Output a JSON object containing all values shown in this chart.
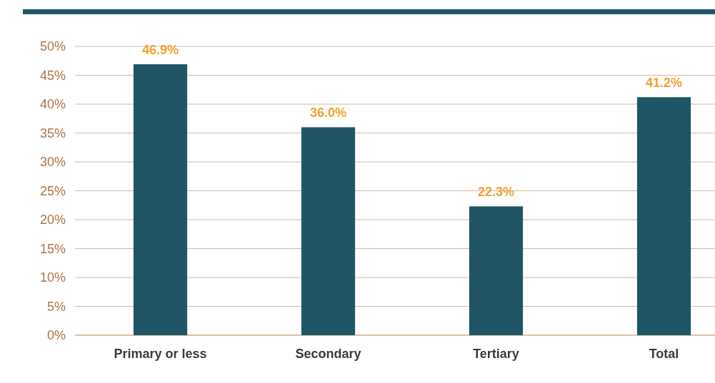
{
  "chart_data": {
    "type": "bar",
    "categories": [
      "Primary or less",
      "Secondary",
      "Tertiary",
      "Total"
    ],
    "values": [
      46.9,
      36.0,
      22.3,
      41.2
    ],
    "color": "#1f5566",
    "value_labels": [
      "46.9%",
      "36.0%",
      "22.3%",
      "41.2%"
    ],
    "ylim": [
      0,
      50
    ],
    "yticks": [
      {
        "value": 0,
        "label": "0%"
      },
      {
        "value": 5,
        "label": "5%"
      },
      {
        "value": 10,
        "label": "10%"
      },
      {
        "value": 15,
        "label": "15%"
      },
      {
        "value": 20,
        "label": "20%"
      },
      {
        "value": 25,
        "label": "25%"
      },
      {
        "value": 30,
        "label": "30%"
      },
      {
        "value": 35,
        "label": "35%"
      },
      {
        "value": 40,
        "label": "40%"
      },
      {
        "value": 45,
        "label": "45%"
      },
      {
        "value": 50,
        "label": "50%"
      }
    ],
    "grid": "y"
  }
}
